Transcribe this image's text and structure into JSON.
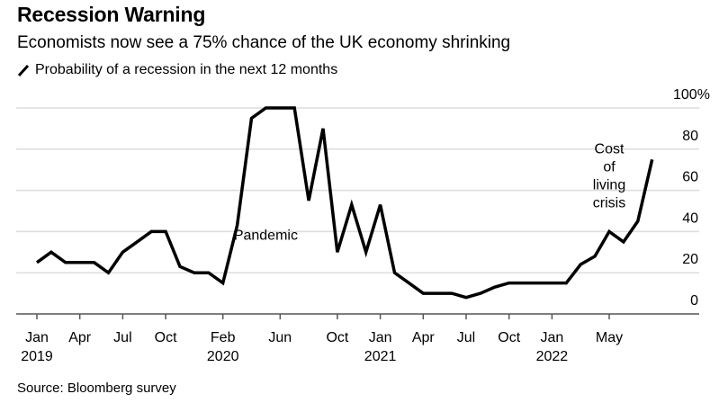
{
  "chart_data": {
    "type": "line",
    "title": "Recession Warning",
    "subtitle": "Economists now see a 75% chance of the UK economy shrinking",
    "legend": [
      {
        "label": "Probability of a recession in the next 12 months",
        "color": "#000000"
      }
    ],
    "legend_position": "top-left",
    "source": "Source: Bloomberg survey",
    "xlabel": "",
    "ylabel": "",
    "ylim": [
      0,
      100
    ],
    "y_axis_side": "right",
    "y_ticks": [
      {
        "value": 0,
        "label": "0"
      },
      {
        "value": 20,
        "label": "20"
      },
      {
        "value": 40,
        "label": "40"
      },
      {
        "value": 60,
        "label": "60"
      },
      {
        "value": 80,
        "label": "80"
      },
      {
        "value": 100,
        "label": "100%"
      }
    ],
    "grid": true,
    "x_start": "2019-01",
    "x_ticks": [
      {
        "month_index": 0,
        "label": "Jan",
        "year": "2019"
      },
      {
        "month_index": 3,
        "label": "Apr",
        "year": ""
      },
      {
        "month_index": 6,
        "label": "Jul",
        "year": ""
      },
      {
        "month_index": 9,
        "label": "Oct",
        "year": ""
      },
      {
        "month_index": 13,
        "label": "Feb",
        "year": "2020"
      },
      {
        "month_index": 17,
        "label": "Jun",
        "year": ""
      },
      {
        "month_index": 21,
        "label": "Oct",
        "year": ""
      },
      {
        "month_index": 24,
        "label": "Jan",
        "year": "2021"
      },
      {
        "month_index": 27,
        "label": "Apr",
        "year": ""
      },
      {
        "month_index": 30,
        "label": "Jul",
        "year": ""
      },
      {
        "month_index": 33,
        "label": "Oct",
        "year": ""
      },
      {
        "month_index": 36,
        "label": "Jan",
        "year": "2022"
      },
      {
        "month_index": 40,
        "label": "May",
        "year": ""
      }
    ],
    "x_max_index": 46,
    "series": [
      {
        "name": "Probability of a recession in the next 12 months",
        "color": "#000000",
        "x": [
          "2019-01",
          "2019-02",
          "2019-03",
          "2019-04",
          "2019-05",
          "2019-06",
          "2019-07",
          "2019-08",
          "2019-09",
          "2019-10",
          "2019-11",
          "2019-12",
          "2020-01",
          "2020-02",
          "2020-03",
          "2020-04",
          "2020-05",
          "2020-06",
          "2020-07",
          "2020-08",
          "2020-09",
          "2020-10",
          "2020-11",
          "2020-12",
          "2021-01",
          "2021-02",
          "2021-03",
          "2021-04",
          "2021-05",
          "2021-06",
          "2021-07",
          "2021-08",
          "2021-09",
          "2021-10",
          "2021-11",
          "2021-12",
          "2022-01",
          "2022-02",
          "2022-03",
          "2022-04",
          "2022-05",
          "2022-06",
          "2022-07",
          "2022-08"
        ],
        "values": [
          25,
          30,
          25,
          25,
          25,
          20,
          30,
          35,
          40,
          40,
          23,
          20,
          20,
          15,
          43,
          95,
          100,
          100,
          100,
          55,
          90,
          30,
          53,
          30,
          53,
          20,
          15,
          10,
          10,
          10,
          8,
          10,
          13,
          15,
          15,
          15,
          15,
          15,
          24,
          28,
          40,
          35,
          45,
          75
        ]
      }
    ],
    "annotations": [
      {
        "text": "Pandemic",
        "at": "2020-05",
        "value": 36
      },
      {
        "text": "Cost\nof\nliving\ncrisis",
        "at": "2022-05",
        "value": 78
      }
    ]
  }
}
